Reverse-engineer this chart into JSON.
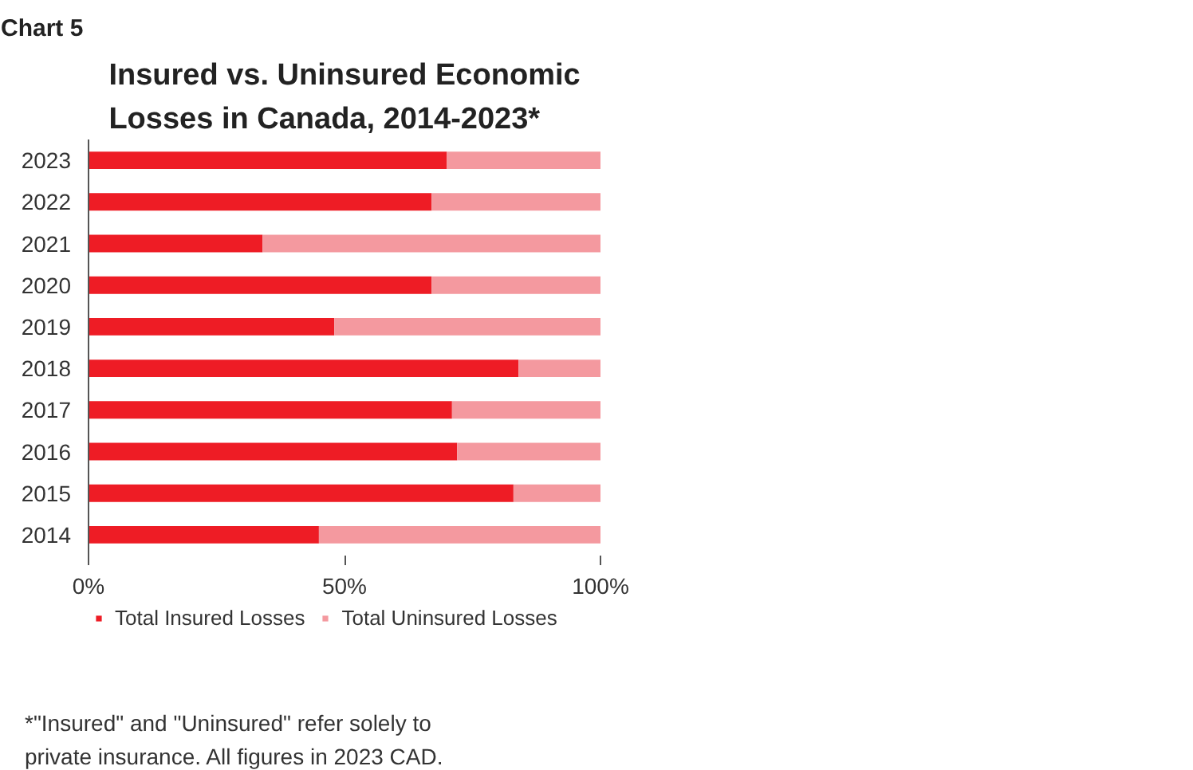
{
  "chart_data": {
    "type": "bar",
    "title": "Insured vs. Uninsured Economic Losses in Canada, 2014-2023*",
    "annotations": [
      "Chart 5",
      "*\"Insured\" and \"Uninsured\" refer solely to private insurance. All figures in 2023 CAD."
    ],
    "categories": [
      "2023",
      "2022",
      "2021",
      "2020",
      "2019",
      "2018",
      "2017",
      "2016",
      "2015",
      "2014"
    ],
    "orientation": "horizontal",
    "stacked": true,
    "series": [
      {
        "name": "Total Insured Losses",
        "color": "#ee1c25",
        "values": [
          70,
          67,
          34,
          67,
          48,
          84,
          71,
          72,
          83,
          45
        ]
      },
      {
        "name": "Total Uninsured Losses",
        "color": "#f4999f",
        "values": [
          30,
          33,
          66,
          33,
          52,
          16,
          29,
          28,
          17,
          55
        ]
      }
    ],
    "xlim": [
      0,
      100
    ],
    "xticks": [
      {
        "value": 0,
        "label": "0%"
      },
      {
        "value": 50,
        "label": "50%"
      },
      {
        "value": 100,
        "label": "100%"
      }
    ],
    "legend": "bottom"
  }
}
